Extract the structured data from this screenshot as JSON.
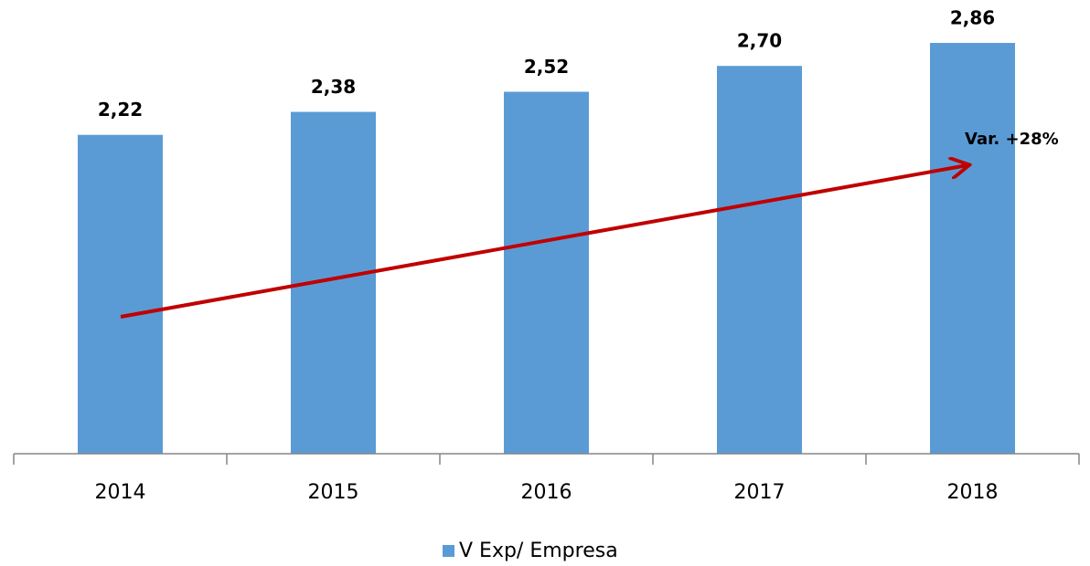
{
  "chart_data": {
    "type": "bar",
    "categories": [
      "2014",
      "2015",
      "2016",
      "2017",
      "2018"
    ],
    "series": [
      {
        "name": "V Exp/ Empresa",
        "color": "#5b9bd5",
        "values": [
          2.22,
          2.38,
          2.52,
          2.7,
          2.86
        ],
        "value_labels": [
          "2,22",
          "2,38",
          "2,52",
          "2,70",
          "2,86"
        ]
      }
    ],
    "ylim": [
      0,
      3
    ],
    "annotation": "Var. +28%",
    "legend": "bottom"
  }
}
